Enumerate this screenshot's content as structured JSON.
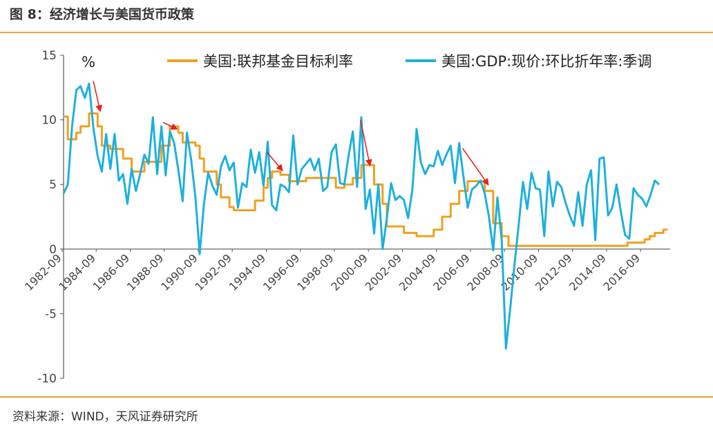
{
  "figure_title": "图 8：经济增长与美国货币政策",
  "source": "资料来源：WIND，天风证券研究所",
  "colors": {
    "rate": "#F0A020",
    "gdp": "#1EB0DC",
    "arrow": "#E8201E",
    "rule": "#E8A23A"
  },
  "chart_data": {
    "type": "line",
    "unit_label": "%",
    "ylim": [
      -10,
      15
    ],
    "y_ticks": [
      15,
      10,
      5,
      0,
      -5,
      -10
    ],
    "x_range": [
      1982.75,
      2018.4
    ],
    "x_tick_labels": [
      "1982-09",
      "1984-09",
      "1986-09",
      "1988-09",
      "1990-09",
      "1992-09",
      "1994-09",
      "1996-09",
      "1998-09",
      "2000-09",
      "2002-09",
      "2004-09",
      "2006-09",
      "2008-09",
      "2010-09",
      "2012-09",
      "2014-09",
      "2016-09"
    ],
    "legend_position": "top",
    "series": [
      {
        "name": "美国:联邦基金目标利率",
        "step": true,
        "points": [
          [
            1982.75,
            10.25
          ],
          [
            1983.0,
            8.5
          ],
          [
            1983.5,
            9.0
          ],
          [
            1983.75,
            9.5
          ],
          [
            1984.25,
            10.5
          ],
          [
            1984.75,
            9.5
          ],
          [
            1985.0,
            8.0
          ],
          [
            1985.5,
            7.75
          ],
          [
            1986.25,
            7.0
          ],
          [
            1986.75,
            6.0
          ],
          [
            1987.5,
            6.75
          ],
          [
            1988.0,
            6.75
          ],
          [
            1988.5,
            8.0
          ],
          [
            1989.0,
            9.5
          ],
          [
            1989.5,
            9.0
          ],
          [
            1989.75,
            8.25
          ],
          [
            1990.5,
            8.0
          ],
          [
            1990.75,
            7.0
          ],
          [
            1991.0,
            6.0
          ],
          [
            1991.75,
            5.0
          ],
          [
            1992.0,
            4.0
          ],
          [
            1992.5,
            3.25
          ],
          [
            1992.75,
            3.0
          ],
          [
            1994.0,
            3.75
          ],
          [
            1994.5,
            4.75
          ],
          [
            1994.75,
            5.5
          ],
          [
            1995.0,
            6.0
          ],
          [
            1995.5,
            5.75
          ],
          [
            1996.0,
            5.25
          ],
          [
            1997.0,
            5.5
          ],
          [
            1998.75,
            4.75
          ],
          [
            1999.25,
            5.0
          ],
          [
            1999.75,
            5.5
          ],
          [
            2000.25,
            6.5
          ],
          [
            2001.0,
            5.0
          ],
          [
            2001.5,
            3.5
          ],
          [
            2001.75,
            1.75
          ],
          [
            2002.75,
            1.25
          ],
          [
            2003.5,
            1.0
          ],
          [
            2004.5,
            1.5
          ],
          [
            2005.0,
            2.5
          ],
          [
            2005.5,
            3.5
          ],
          [
            2006.0,
            4.5
          ],
          [
            2006.5,
            5.25
          ],
          [
            2007.5,
            4.5
          ],
          [
            2008.0,
            2.0
          ],
          [
            2008.5,
            1.0
          ],
          [
            2008.9,
            0.25
          ],
          [
            2015.9,
            0.5
          ],
          [
            2016.9,
            0.75
          ],
          [
            2017.2,
            1.0
          ],
          [
            2017.5,
            1.25
          ],
          [
            2018.0,
            1.5
          ],
          [
            2018.25,
            1.5
          ]
        ]
      },
      {
        "name": "美国:GDP:现价:环比折年率:季调",
        "step": false,
        "points": [
          [
            1982.75,
            4.3
          ],
          [
            1983.0,
            5.0
          ],
          [
            1983.25,
            9.5
          ],
          [
            1983.5,
            12.3
          ],
          [
            1983.75,
            12.6
          ],
          [
            1984.0,
            11.7
          ],
          [
            1984.25,
            12.8
          ],
          [
            1984.5,
            9.4
          ],
          [
            1984.75,
            7.2
          ],
          [
            1985.0,
            6.0
          ],
          [
            1985.25,
            8.9
          ],
          [
            1985.5,
            6.2
          ],
          [
            1985.75,
            8.9
          ],
          [
            1986.0,
            5.3
          ],
          [
            1986.25,
            5.8
          ],
          [
            1986.5,
            3.5
          ],
          [
            1986.75,
            6.2
          ],
          [
            1987.0,
            4.5
          ],
          [
            1987.25,
            5.8
          ],
          [
            1987.5,
            7.3
          ],
          [
            1987.75,
            6.6
          ],
          [
            1988.0,
            10.2
          ],
          [
            1988.25,
            5.8
          ],
          [
            1988.5,
            9.5
          ],
          [
            1988.75,
            5.7
          ],
          [
            1989.0,
            9.1
          ],
          [
            1989.25,
            8.2
          ],
          [
            1989.5,
            6.1
          ],
          [
            1989.75,
            3.7
          ],
          [
            1990.0,
            9.0
          ],
          [
            1990.25,
            6.9
          ],
          [
            1990.5,
            4.0
          ],
          [
            1990.75,
            -0.4
          ],
          [
            1991.0,
            3.5
          ],
          [
            1991.25,
            5.9
          ],
          [
            1991.5,
            4.9
          ],
          [
            1991.75,
            4.2
          ],
          [
            1992.0,
            6.4
          ],
          [
            1992.25,
            7.2
          ],
          [
            1992.5,
            6.1
          ],
          [
            1992.75,
            6.7
          ],
          [
            1993.0,
            3.2
          ],
          [
            1993.25,
            5.1
          ],
          [
            1993.5,
            4.8
          ],
          [
            1993.75,
            7.7
          ],
          [
            1994.0,
            5.9
          ],
          [
            1994.25,
            7.5
          ],
          [
            1994.5,
            4.9
          ],
          [
            1994.75,
            8.3
          ],
          [
            1995.0,
            3.4
          ],
          [
            1995.25,
            3.0
          ],
          [
            1995.5,
            5.0
          ],
          [
            1995.75,
            4.8
          ],
          [
            1996.0,
            4.4
          ],
          [
            1996.25,
            8.8
          ],
          [
            1996.5,
            5.0
          ],
          [
            1996.75,
            6.2
          ],
          [
            1997.0,
            6.6
          ],
          [
            1997.25,
            7.0
          ],
          [
            1997.5,
            6.1
          ],
          [
            1997.75,
            7.0
          ],
          [
            1998.0,
            4.5
          ],
          [
            1998.25,
            4.8
          ],
          [
            1998.5,
            7.5
          ],
          [
            1998.75,
            8.1
          ],
          [
            1999.0,
            5.1
          ],
          [
            1999.25,
            5.0
          ],
          [
            1999.5,
            7.2
          ],
          [
            1999.75,
            9.1
          ],
          [
            2000.0,
            4.8
          ],
          [
            2000.25,
            10.2
          ],
          [
            2000.5,
            3.1
          ],
          [
            2000.75,
            4.6
          ],
          [
            2001.0,
            1.2
          ],
          [
            2001.25,
            5.0
          ],
          [
            2001.5,
            0.0
          ],
          [
            2001.75,
            2.4
          ],
          [
            2002.0,
            5.1
          ],
          [
            2002.25,
            3.8
          ],
          [
            2002.5,
            4.1
          ],
          [
            2002.75,
            3.8
          ],
          [
            2003.0,
            2.4
          ],
          [
            2003.25,
            4.6
          ],
          [
            2003.5,
            9.3
          ],
          [
            2003.75,
            6.7
          ],
          [
            2004.0,
            5.8
          ],
          [
            2004.25,
            6.5
          ],
          [
            2004.5,
            6.4
          ],
          [
            2004.75,
            7.6
          ],
          [
            2005.0,
            6.5
          ],
          [
            2005.25,
            7.3
          ],
          [
            2005.5,
            8.0
          ],
          [
            2005.75,
            5.1
          ],
          [
            2006.0,
            8.2
          ],
          [
            2006.25,
            5.6
          ],
          [
            2006.5,
            3.2
          ],
          [
            2006.75,
            4.6
          ],
          [
            2007.0,
            4.9
          ],
          [
            2007.25,
            5.3
          ],
          [
            2007.5,
            4.3
          ],
          [
            2007.75,
            2.5
          ],
          [
            2008.0,
            -0.1
          ],
          [
            2008.25,
            4.0
          ],
          [
            2008.5,
            0.7
          ],
          [
            2008.75,
            -7.7
          ],
          [
            2009.0,
            -4.6
          ],
          [
            2009.25,
            -1.2
          ],
          [
            2009.5,
            1.9
          ],
          [
            2009.75,
            5.2
          ],
          [
            2010.0,
            3.1
          ],
          [
            2010.25,
            5.9
          ],
          [
            2010.5,
            4.7
          ],
          [
            2010.75,
            4.6
          ],
          [
            2011.0,
            1.0
          ],
          [
            2011.25,
            6.0
          ],
          [
            2011.5,
            3.3
          ],
          [
            2011.75,
            5.2
          ],
          [
            2012.0,
            4.8
          ],
          [
            2012.25,
            3.6
          ],
          [
            2012.5,
            2.6
          ],
          [
            2012.75,
            1.8
          ],
          [
            2013.0,
            4.4
          ],
          [
            2013.25,
            1.8
          ],
          [
            2013.5,
            5.0
          ],
          [
            2013.75,
            6.1
          ],
          [
            2014.0,
            0.7
          ],
          [
            2014.25,
            7.0
          ],
          [
            2014.5,
            7.1
          ],
          [
            2014.75,
            2.6
          ],
          [
            2015.0,
            3.2
          ],
          [
            2015.25,
            5.0
          ],
          [
            2015.5,
            2.9
          ],
          [
            2015.75,
            1.1
          ],
          [
            2016.0,
            0.8
          ],
          [
            2016.25,
            4.7
          ],
          [
            2016.5,
            4.2
          ],
          [
            2016.75,
            3.9
          ],
          [
            2017.0,
            3.3
          ],
          [
            2017.25,
            4.2
          ],
          [
            2017.5,
            5.3
          ],
          [
            2017.75,
            5.0
          ]
        ]
      }
    ],
    "annotations": [
      {
        "type": "arrow",
        "from": [
          1984.5,
          13.0
        ],
        "to": [
          1984.9,
          10.7
        ]
      },
      {
        "type": "arrow",
        "from": [
          1988.6,
          9.8
        ],
        "to": [
          1989.4,
          9.3
        ]
      },
      {
        "type": "arrow",
        "from": [
          1994.7,
          7.5
        ],
        "to": [
          1995.6,
          6.1
        ]
      },
      {
        "type": "arrow",
        "from": [
          2000.2,
          10.0
        ],
        "to": [
          2000.75,
          6.5
        ]
      },
      {
        "type": "arrow",
        "from": [
          2006.2,
          7.8
        ],
        "to": [
          2007.7,
          5.0
        ]
      }
    ]
  }
}
